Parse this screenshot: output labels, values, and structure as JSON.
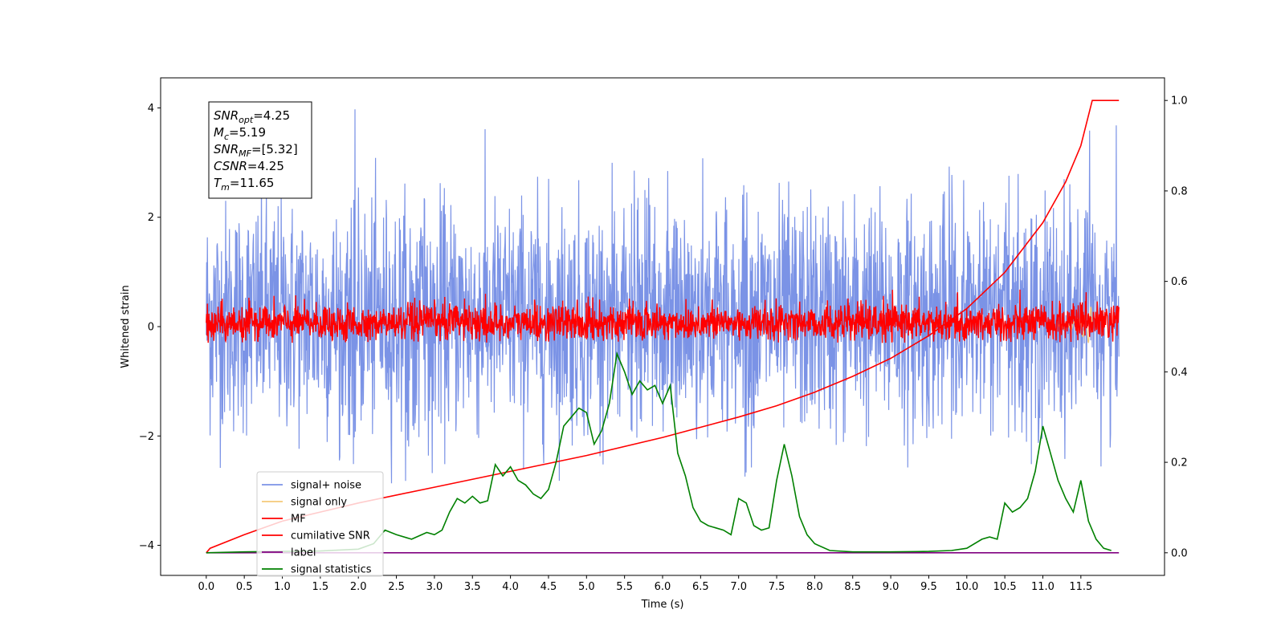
{
  "chart_data": {
    "type": "line",
    "title": "",
    "xlabel": "Time (s)",
    "ylabel": "Whitened strain",
    "xlim": [
      -0.6,
      12.6
    ],
    "ylim": [
      -4.55,
      4.55
    ],
    "ylim_right": [
      -0.05,
      1.05
    ],
    "xticks": [
      "0.0",
      "0.5",
      "1.0",
      "1.5",
      "2.0",
      "2.5",
      "3.0",
      "3.5",
      "4.0",
      "4.5",
      "5.0",
      "5.5",
      "6.0",
      "6.5",
      "7.0",
      "7.5",
      "8.0",
      "8.5",
      "9.0",
      "9.5",
      "10.0",
      "10.5",
      "11.0",
      "11.5"
    ],
    "yticks_left": [
      "4",
      "2",
      "0",
      "−2",
      "−4"
    ],
    "yticks_right": [
      "1.0",
      "0.8",
      "0.6",
      "0.4",
      "0.2",
      "0.0"
    ],
    "grid": false,
    "legend_position": "lower-left",
    "annotation": {
      "lines": [
        {
          "base": "SNR",
          "sub": "opt",
          "rest": "=4.25"
        },
        {
          "base": "M",
          "sub": "c",
          "rest": "=5.19"
        },
        {
          "base": "SNR",
          "sub": "MF",
          "rest": "=[5.32]"
        },
        {
          "base": "CSNR",
          "sub": "",
          "rest": "=4.25"
        },
        {
          "base": "T",
          "sub": "m",
          "rest": "=11.65"
        }
      ]
    },
    "series": [
      {
        "name": "signal+ noise",
        "color": "#7b93e6",
        "axis": "left",
        "kind": "noise",
        "x_range": [
          0,
          12
        ],
        "envelope": [
          -2.9,
          4.05
        ]
      },
      {
        "name": "signal only",
        "color": "#f5c97a",
        "axis": "left",
        "kind": "chirp",
        "x_range": [
          11.2,
          11.65
        ]
      },
      {
        "name": "MF",
        "color": "#ff0000",
        "axis": "left",
        "kind": "noise-small",
        "x_range": [
          0,
          12
        ],
        "envelope": [
          -0.3,
          0.75
        ]
      },
      {
        "name": "cumilative SNR",
        "color": "#ff0000",
        "axis": "right",
        "x": [
          0,
          0.05,
          0.5,
          1.0,
          2.0,
          3.0,
          4.0,
          5.0,
          6.0,
          7.0,
          7.5,
          8.0,
          8.5,
          9.0,
          9.5,
          10.0,
          10.5,
          11.0,
          11.3,
          11.5,
          11.65,
          12.0
        ],
        "values": [
          0.0,
          0.01,
          0.04,
          0.07,
          0.11,
          0.145,
          0.18,
          0.215,
          0.255,
          0.3,
          0.325,
          0.355,
          0.39,
          0.43,
          0.48,
          0.54,
          0.62,
          0.73,
          0.82,
          0.9,
          1.0,
          1.0
        ]
      },
      {
        "name": "label",
        "color": "#800080",
        "axis": "right",
        "x": [
          0,
          12
        ],
        "values": [
          0.0,
          0.0
        ]
      },
      {
        "name": "signal statistics",
        "color": "#008000",
        "axis": "right",
        "x": [
          0,
          0.5,
          1.0,
          1.5,
          2.0,
          2.2,
          2.35,
          2.5,
          2.7,
          2.9,
          3.0,
          3.1,
          3.2,
          3.3,
          3.4,
          3.5,
          3.6,
          3.7,
          3.8,
          3.9,
          4.0,
          4.1,
          4.2,
          4.3,
          4.4,
          4.5,
          4.6,
          4.7,
          4.8,
          4.9,
          5.0,
          5.1,
          5.2,
          5.3,
          5.4,
          5.5,
          5.6,
          5.7,
          5.8,
          5.9,
          6.0,
          6.1,
          6.2,
          6.3,
          6.4,
          6.5,
          6.6,
          6.7,
          6.8,
          6.9,
          7.0,
          7.1,
          7.2,
          7.3,
          7.4,
          7.5,
          7.6,
          7.7,
          7.8,
          7.9,
          8.0,
          8.2,
          8.5,
          9.0,
          9.5,
          9.8,
          10.0,
          10.2,
          10.3,
          10.4,
          10.5,
          10.6,
          10.7,
          10.8,
          10.9,
          11.0,
          11.1,
          11.2,
          11.3,
          11.4,
          11.5,
          11.6,
          11.7,
          11.8,
          11.9
        ],
        "values": [
          0.0,
          0.002,
          0.003,
          0.004,
          0.008,
          0.02,
          0.05,
          0.04,
          0.03,
          0.045,
          0.04,
          0.05,
          0.09,
          0.12,
          0.11,
          0.125,
          0.11,
          0.115,
          0.195,
          0.17,
          0.19,
          0.16,
          0.15,
          0.13,
          0.12,
          0.14,
          0.2,
          0.28,
          0.3,
          0.32,
          0.31,
          0.24,
          0.27,
          0.33,
          0.44,
          0.4,
          0.35,
          0.38,
          0.36,
          0.37,
          0.33,
          0.37,
          0.22,
          0.17,
          0.1,
          0.07,
          0.06,
          0.055,
          0.05,
          0.04,
          0.12,
          0.11,
          0.06,
          0.05,
          0.055,
          0.16,
          0.24,
          0.17,
          0.08,
          0.04,
          0.02,
          0.005,
          0.002,
          0.002,
          0.003,
          0.005,
          0.01,
          0.03,
          0.035,
          0.03,
          0.11,
          0.09,
          0.1,
          0.12,
          0.18,
          0.28,
          0.22,
          0.16,
          0.12,
          0.09,
          0.16,
          0.07,
          0.03,
          0.01,
          0.005
        ]
      }
    ]
  }
}
